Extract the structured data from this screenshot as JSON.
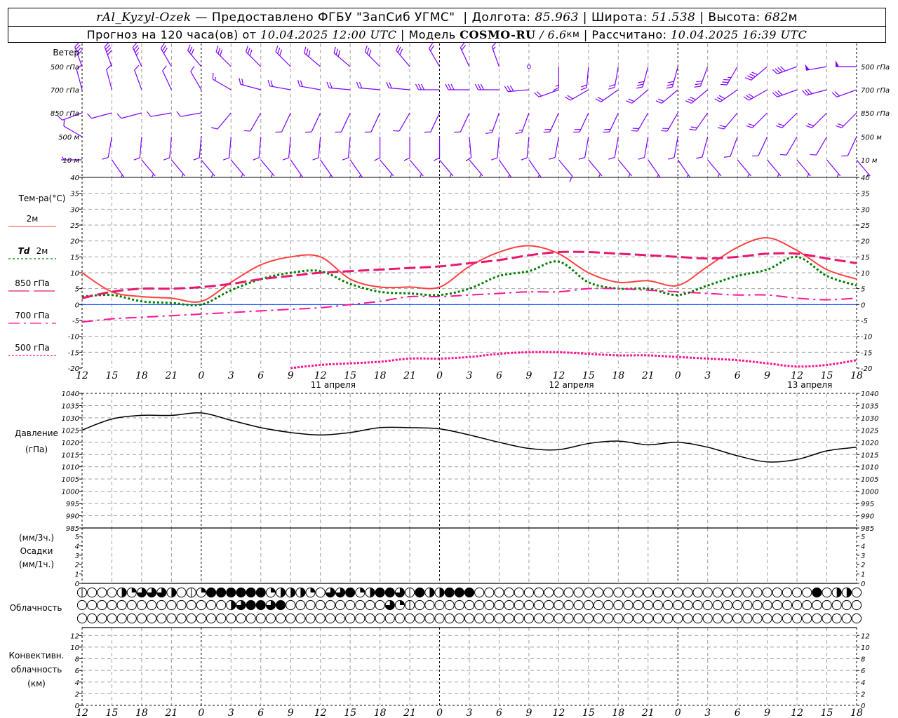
{
  "header": {
    "station": "rAl_Kyzyl-Ozek",
    "provider": " — Предоставлено ФГБУ \"ЗапСиб УГМС\" ",
    "sep": " | ",
    "lon_label": "Долгота: ",
    "lon": "85.963",
    "lat_label": "Широта: ",
    "lat": "51.538",
    "alt_label": "Высота: ",
    "alt": "682",
    "alt_unit": "м",
    "forecast_label": "Прогноз на 120 часа(ов) от ",
    "forecast_time": "10.04.2025 12:00 UTC",
    "model_label": "Модель ",
    "model": "COSMO-RU",
    "model_res_sep": " / ",
    "model_res": "6.6",
    "model_res_unit": "км",
    "calc_label": "Рассчитано: ",
    "calc_time": "10.04.2025 16:39 UTC"
  },
  "colors": {
    "wind": "#8000ff",
    "t2m": "#ff4040",
    "td2m": "#008000",
    "t850": "#e8186e",
    "t700": "#ff1493",
    "t500": "#ff1493",
    "zero": "#0040ff",
    "grid": "#a0a0a0"
  },
  "labels": {
    "wind": "Ветер",
    "levels": [
      "500 гПа",
      "700 гПа",
      "850 гПа",
      "500  м",
      "10   м"
    ],
    "temp_title": "Тем-ра(°C)",
    "leg_2m": "2м",
    "leg_td": "Td",
    "leg_td_2m": "2м",
    "leg_850": "850 гПа",
    "leg_700": "700 гПа",
    "leg_500": "500 гПа",
    "pressure_1": "Давление",
    "pressure_2": "(гПа)",
    "precip_1": "(мм/3ч.)",
    "precip_2": "Осадки",
    "precip_3": "(мм/1ч.)",
    "clouds": "Облачность",
    "conv_1": "Конвективн.",
    "conv_2": "облачность",
    "conv_3": "(км)",
    "dates": [
      "11 апреля",
      "12 апреля",
      "13 апреля"
    ]
  },
  "chart_data": [
    {
      "type": "wind_barbs",
      "title": "Ветер",
      "hours": [
        0,
        3,
        6,
        9,
        12,
        15,
        18,
        21,
        24,
        27,
        30,
        33,
        36,
        39,
        42,
        45,
        48,
        51,
        54,
        57,
        60,
        63,
        66,
        69,
        72,
        75,
        78
      ],
      "units": "m/s, direction from (deg)",
      "levels": [
        {
          "name": "500 гПа",
          "dir": [
            340,
            340,
            335,
            330,
            320,
            315,
            315,
            315,
            310,
            310,
            315,
            320,
            330,
            335,
            340,
            0,
            180,
            185,
            190,
            195,
            195,
            200,
            210,
            230,
            250,
            260,
            270
          ],
          "speed": [
            20,
            20,
            18,
            16,
            15,
            15,
            15,
            15,
            15,
            15,
            15,
            15,
            12,
            10,
            8,
            0,
            8,
            10,
            12,
            15,
            15,
            17,
            18,
            20,
            22,
            25,
            25
          ]
        },
        {
          "name": "700 гПа",
          "dir": [
            345,
            345,
            340,
            335,
            330,
            300,
            285,
            280,
            280,
            275,
            275,
            275,
            270,
            270,
            270,
            265,
            250,
            240,
            235,
            230,
            230,
            230,
            235,
            240,
            250,
            255,
            250
          ],
          "speed": [
            7,
            7,
            7,
            7,
            7,
            8,
            10,
            10,
            10,
            10,
            12,
            12,
            15,
            15,
            15,
            15,
            12,
            12,
            12,
            12,
            12,
            15,
            15,
            15,
            15,
            15,
            12
          ]
        },
        {
          "name": "850 гПа",
          "dir": [
            250,
            255,
            255,
            260,
            260,
            220,
            210,
            205,
            205,
            205,
            205,
            210,
            205,
            205,
            200,
            200,
            205,
            205,
            205,
            210,
            210,
            215,
            220,
            225,
            225,
            225,
            225
          ],
          "speed": [
            5,
            5,
            5,
            5,
            5,
            7,
            7,
            7,
            7,
            7,
            7,
            7,
            7,
            7,
            8,
            8,
            10,
            10,
            10,
            10,
            10,
            10,
            10,
            10,
            10,
            10,
            10
          ]
        },
        {
          "name": "500 м",
          "dir": [
            300,
            190,
            185,
            185,
            185,
            185,
            185,
            185,
            185,
            185,
            180,
            180,
            180,
            175,
            185,
            185,
            190,
            190,
            190,
            190,
            190,
            195,
            200,
            205,
            210,
            210,
            205
          ],
          "speed": [
            5,
            5,
            5,
            5,
            5,
            5,
            5,
            5,
            5,
            5,
            5,
            5,
            5,
            5,
            5,
            7,
            7,
            7,
            7,
            7,
            7,
            7,
            7,
            7,
            7,
            7,
            7
          ]
        },
        {
          "name": "10 м",
          "dir": [
            270,
            145,
            140,
            140,
            140,
            140,
            140,
            145,
            145,
            145,
            140,
            140,
            140,
            140,
            145,
            145,
            140,
            140,
            140,
            145,
            145,
            140,
            140,
            140,
            140,
            140,
            140
          ],
          "speed": [
            3,
            3,
            3,
            3,
            3,
            3,
            3,
            3,
            3,
            3,
            3,
            3,
            3,
            3,
            3,
            3,
            5,
            3,
            3,
            3,
            3,
            3,
            3,
            3,
            3,
            3,
            3
          ]
        }
      ]
    },
    {
      "type": "line",
      "title": "Тем-ра(°C)",
      "x_hours": [
        0,
        3,
        6,
        9,
        12,
        15,
        18,
        21,
        24,
        27,
        30,
        33,
        36,
        39,
        42,
        45,
        48,
        51,
        54,
        57,
        60,
        63,
        66,
        69,
        72,
        75,
        78
      ],
      "x_tick_labels": [
        "12",
        "15",
        "18",
        "21",
        "0",
        "3",
        "6",
        "9",
        "12",
        "15",
        "18",
        "21",
        "0",
        "3",
        "6",
        "9",
        "12",
        "15",
        "18",
        "21",
        "0",
        "3",
        "6",
        "9",
        "12",
        "15",
        "18"
      ],
      "ylim": [
        -20,
        40
      ],
      "y_ticks": [
        -20,
        -15,
        -10,
        -5,
        0,
        5,
        10,
        15,
        20,
        25,
        30,
        35,
        40
      ],
      "series": [
        {
          "name": "2м",
          "values": [
            10,
            4,
            2.5,
            2,
            1,
            7,
            12.5,
            15,
            15,
            8,
            5.5,
            5.5,
            5.5,
            12,
            16.5,
            18.5,
            16,
            10,
            7,
            7.5,
            6,
            12,
            18,
            21,
            17,
            11,
            8
          ]
        },
        {
          "name": "Td 2м",
          "values": [
            2.5,
            3,
            1,
            0.5,
            0,
            4.5,
            8,
            10,
            10.5,
            6.5,
            4,
            3.5,
            3,
            5,
            9,
            10.5,
            13.5,
            7,
            5,
            5,
            3,
            6,
            9,
            11,
            15,
            9,
            6
          ]
        },
        {
          "name": "850 гПа",
          "values": [
            2,
            4,
            5,
            5,
            5.5,
            6.5,
            8,
            9,
            10,
            10.5,
            11,
            11.5,
            12,
            13,
            14,
            15.5,
            16.5,
            16.5,
            16,
            15.5,
            15,
            14.5,
            15,
            16,
            16,
            14.5,
            13
          ]
        },
        {
          "name": "700 гПа",
          "values": [
            -5.5,
            -4.5,
            -4,
            -3.5,
            -3,
            -2.5,
            -2,
            -1.5,
            -1,
            0,
            1,
            2.5,
            2.5,
            3,
            3.5,
            4,
            4,
            5,
            5,
            4.5,
            4,
            3.5,
            3,
            3,
            2,
            1.5,
            2
          ]
        },
        {
          "name": "500 гПа",
          "values": [
            null,
            null,
            null,
            null,
            null,
            null,
            null,
            -20,
            -19,
            -18.5,
            -18,
            -17,
            -17,
            -16.5,
            -15.5,
            -15,
            -15,
            -15.5,
            -16,
            -16,
            -16.5,
            -17,
            -17.5,
            -18.5,
            -19.5,
            -19,
            -17.5
          ]
        }
      ]
    },
    {
      "type": "line",
      "title": "Давление (гПа)",
      "ylim": [
        985,
        1040
      ],
      "y_ticks": [
        985,
        990,
        995,
        1000,
        1005,
        1010,
        1015,
        1020,
        1025,
        1030,
        1035,
        1040
      ],
      "series": [
        {
          "name": "Давление",
          "values": [
            1025,
            1029.5,
            1031,
            1031,
            1032,
            1029,
            1026,
            1024,
            1023,
            1024,
            1026,
            1026,
            1025.5,
            1023,
            1020,
            1017.5,
            1017,
            1019.5,
            1020.5,
            1019,
            1020,
            1018,
            1014.5,
            1012,
            1013,
            1016.5,
            1018
          ]
        }
      ]
    },
    {
      "type": "bar",
      "title": "Осадки",
      "ylim": [
        0,
        5
      ],
      "y_ticks": [
        0,
        1,
        2,
        3,
        4,
        5
      ],
      "values": []
    },
    {
      "type": "table",
      "title": "Облачность",
      "units": "octas, hourly from hour 0 to 78",
      "rows": [
        [
          1,
          0,
          0,
          0,
          4,
          2,
          6,
          6,
          6,
          4,
          0,
          1,
          2,
          8,
          8,
          8,
          8,
          8,
          8,
          2,
          4,
          4,
          4,
          2,
          0,
          6,
          6,
          8,
          2,
          4,
          8,
          8,
          6,
          1,
          8,
          4,
          4,
          8,
          8,
          8,
          0,
          0,
          0,
          0,
          0,
          0,
          0,
          0,
          0,
          0,
          0,
          0,
          0,
          0,
          0,
          0,
          0,
          0,
          0,
          0,
          0,
          0,
          0,
          0,
          0,
          0,
          0,
          0,
          0,
          0,
          0,
          0,
          0,
          0,
          8,
          0,
          4,
          4,
          0
        ],
        [
          0,
          0,
          0,
          0,
          0,
          0,
          0,
          0,
          0,
          0,
          0,
          0,
          0,
          0,
          0,
          4,
          6,
          8,
          8,
          6,
          8,
          0,
          0,
          0,
          0,
          0,
          0,
          0,
          0,
          0,
          0,
          6,
          2,
          1,
          0,
          0,
          0,
          0,
          0,
          0,
          0,
          0,
          0,
          0,
          0,
          0,
          0,
          0,
          0,
          0,
          0,
          0,
          0,
          0,
          0,
          0,
          0,
          0,
          0,
          0,
          0,
          0,
          0,
          0,
          0,
          0,
          0,
          0,
          0,
          0,
          0,
          0,
          0,
          0,
          0,
          0,
          0,
          0,
          0
        ],
        [
          0,
          0,
          0,
          0,
          0,
          0,
          0,
          0,
          0,
          0,
          0,
          0,
          0,
          0,
          0,
          0,
          0,
          0,
          0,
          0,
          0,
          0,
          0,
          0,
          0,
          0,
          0,
          0,
          0,
          0,
          0,
          0,
          0,
          0,
          0,
          0,
          0,
          0,
          0,
          0,
          0,
          0,
          0,
          0,
          0,
          0,
          0,
          0,
          0,
          0,
          0,
          0,
          0,
          0,
          0,
          0,
          0,
          0,
          0,
          0,
          0,
          0,
          0,
          0,
          0,
          0,
          0,
          0,
          0,
          0,
          0,
          0,
          0,
          0,
          0,
          0,
          0,
          0,
          0
        ]
      ]
    },
    {
      "type": "bar",
      "title": "Конвективн. облачность (км)",
      "ylim": [
        0,
        13
      ],
      "y_ticks": [
        0,
        2,
        4,
        6,
        8,
        10,
        12
      ],
      "values": []
    }
  ]
}
